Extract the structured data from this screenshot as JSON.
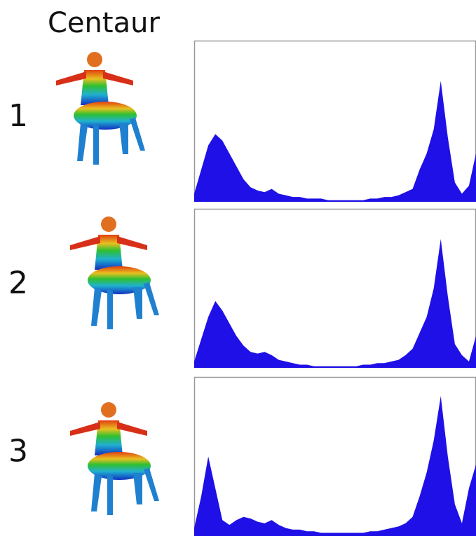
{
  "title": "Centaur",
  "chart_data": [
    {
      "type": "area",
      "label": "1",
      "color": "#1e10e6",
      "xlim": [
        0,
        40
      ],
      "ylim": [
        0,
        100
      ],
      "x": [
        0,
        1,
        2,
        3,
        4,
        5,
        6,
        7,
        8,
        9,
        10,
        11,
        12,
        13,
        14,
        15,
        16,
        17,
        18,
        19,
        20,
        21,
        22,
        23,
        24,
        25,
        26,
        27,
        28,
        29,
        30,
        31,
        32,
        33,
        34,
        35,
        36,
        37,
        38,
        39,
        40
      ],
      "values": [
        5,
        20,
        35,
        42,
        38,
        30,
        22,
        14,
        9,
        7,
        6,
        8,
        5,
        4,
        3,
        3,
        2,
        2,
        2,
        1,
        1,
        1,
        1,
        1,
        1,
        2,
        2,
        3,
        3,
        4,
        6,
        8,
        20,
        30,
        45,
        75,
        40,
        12,
        5,
        10,
        30
      ]
    },
    {
      "type": "area",
      "label": "2",
      "color": "#1e10e6",
      "xlim": [
        0,
        40
      ],
      "ylim": [
        0,
        100
      ],
      "x": [
        0,
        1,
        2,
        3,
        4,
        5,
        6,
        7,
        8,
        9,
        10,
        11,
        12,
        13,
        14,
        15,
        16,
        17,
        18,
        19,
        20,
        21,
        22,
        23,
        24,
        25,
        26,
        27,
        28,
        29,
        30,
        31,
        32,
        33,
        34,
        35,
        36,
        37,
        38,
        39,
        40
      ],
      "values": [
        4,
        18,
        32,
        42,
        36,
        28,
        20,
        14,
        10,
        9,
        10,
        8,
        5,
        4,
        3,
        2,
        2,
        1,
        1,
        1,
        1,
        1,
        1,
        1,
        2,
        2,
        3,
        3,
        4,
        5,
        8,
        12,
        22,
        32,
        50,
        81,
        45,
        15,
        8,
        4,
        20
      ]
    },
    {
      "type": "area",
      "label": "3",
      "color": "#1e10e6",
      "xlim": [
        0,
        40
      ],
      "ylim": [
        0,
        100
      ],
      "x": [
        0,
        1,
        2,
        3,
        4,
        5,
        6,
        7,
        8,
        9,
        10,
        11,
        12,
        13,
        14,
        15,
        16,
        17,
        18,
        19,
        20,
        21,
        22,
        23,
        24,
        25,
        26,
        27,
        28,
        29,
        30,
        31,
        32,
        33,
        34,
        35,
        36,
        37,
        38,
        39,
        40
      ],
      "values": [
        5,
        25,
        50,
        30,
        10,
        7,
        10,
        12,
        11,
        9,
        8,
        10,
        7,
        5,
        4,
        4,
        3,
        3,
        2,
        2,
        2,
        2,
        2,
        2,
        2,
        3,
        3,
        4,
        5,
        6,
        8,
        12,
        25,
        40,
        60,
        88,
        50,
        20,
        8,
        30,
        45
      ]
    }
  ]
}
